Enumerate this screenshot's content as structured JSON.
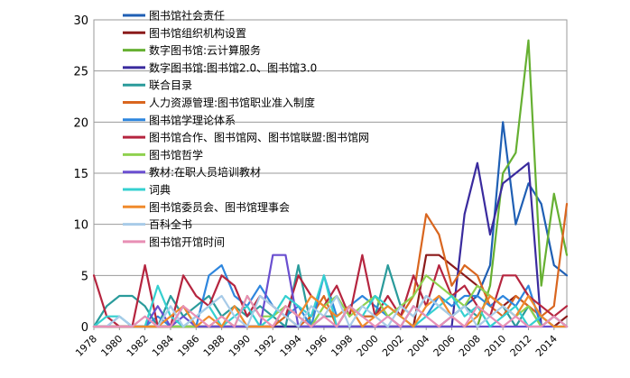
{
  "chart_data": {
    "type": "line",
    "title": "",
    "xlabel": "",
    "ylabel": "",
    "ylim": [
      0,
      30
    ],
    "yticks": [
      0,
      5,
      10,
      15,
      20,
      25,
      30
    ],
    "xlim": [
      1978,
      2015
    ],
    "xtick_labels": [
      "1978",
      "1980",
      "1982",
      "1984",
      "1986",
      "1988",
      "1990",
      "1992",
      "1994",
      "1996",
      "1998",
      "2000",
      "2002",
      "2004",
      "2006",
      "2008",
      "2010",
      "2012",
      "2014"
    ],
    "grid": "horizontal",
    "legend_position": "top-left",
    "x": [
      1978,
      1979,
      1980,
      1981,
      1982,
      1983,
      1984,
      1985,
      1986,
      1987,
      1988,
      1989,
      1990,
      1991,
      1992,
      1993,
      1994,
      1995,
      1996,
      1997,
      1998,
      1999,
      2000,
      2001,
      2002,
      2003,
      2004,
      2005,
      2006,
      2007,
      2008,
      2009,
      2010,
      2011,
      2012,
      2013,
      2014,
      2015
    ],
    "series": [
      {
        "name": "图书馆社会责任",
        "color": "#1f5fb4",
        "values": [
          0,
          0,
          0,
          0,
          0,
          0,
          0,
          0,
          0,
          0,
          0,
          0,
          0,
          0,
          0,
          0,
          0,
          0,
          0,
          0,
          0,
          0,
          0,
          0,
          0,
          0,
          0,
          0,
          1,
          2,
          3,
          6,
          20,
          10,
          14,
          12,
          6,
          5
        ]
      },
      {
        "name": "图书馆组织机构设置",
        "color": "#8b1a1a",
        "values": [
          0,
          0,
          0,
          0,
          0,
          0,
          0,
          0,
          0,
          0,
          0,
          0,
          0,
          0,
          0,
          0,
          0,
          0,
          0,
          0,
          0,
          0,
          0,
          0,
          0,
          0,
          7,
          7,
          6,
          5,
          4,
          3,
          2,
          3,
          2,
          1,
          0,
          1
        ]
      },
      {
        "name": "数字图书馆:云计算服务",
        "color": "#66b032",
        "values": [
          0,
          0,
          0,
          0,
          0,
          0,
          0,
          0,
          0,
          0,
          0,
          0,
          0,
          0,
          0,
          0,
          0,
          0,
          0,
          0,
          0,
          0,
          0,
          0,
          0,
          0,
          0,
          0,
          0,
          0,
          0,
          4,
          15,
          17,
          28,
          4,
          13,
          7
        ]
      },
      {
        "name": "数字图书馆:图书馆2.0、图书馆3.0",
        "color": "#3a2b9e",
        "values": [
          0,
          0,
          0,
          0,
          0,
          0,
          0,
          0,
          0,
          0,
          0,
          0,
          0,
          0,
          0,
          0,
          0,
          0,
          0,
          0,
          0,
          0,
          0,
          0,
          0,
          0,
          0,
          0,
          0,
          11,
          16,
          9,
          14,
          15,
          16,
          0,
          1,
          0
        ]
      },
      {
        "name": "联合目录",
        "color": "#2a9b9b",
        "values": [
          0,
          2,
          3,
          3,
          2,
          0,
          3,
          1,
          2,
          3,
          1,
          2,
          1,
          2,
          1,
          0,
          6,
          0,
          1,
          1,
          2,
          1,
          1,
          6,
          2,
          1,
          3,
          2,
          1,
          2,
          1,
          3,
          2,
          0,
          2,
          0,
          1,
          0
        ]
      },
      {
        "name": "人力资源管理:图书馆职业准入制度",
        "color": "#d9661f",
        "values": [
          0,
          0,
          0,
          0,
          0,
          0,
          0,
          0,
          0,
          0,
          0,
          0,
          0,
          0,
          0,
          1,
          0,
          1,
          3,
          0,
          2,
          1,
          1,
          2,
          1,
          3,
          11,
          9,
          4,
          6,
          5,
          2,
          1,
          3,
          2,
          1,
          2,
          12
        ]
      },
      {
        "name": "图书馆学理论体系",
        "color": "#2e86de",
        "values": [
          0,
          0,
          1,
          0,
          0,
          1,
          0,
          2,
          0,
          5,
          6,
          3,
          2,
          4,
          2,
          1,
          2,
          0,
          5,
          1,
          2,
          3,
          2,
          1,
          0,
          2,
          1,
          3,
          2,
          3,
          3,
          2,
          3,
          2,
          4,
          0,
          1,
          0
        ]
      },
      {
        "name": "图书馆合作、图书馆网、图书馆联盟:图书馆网",
        "color": "#b5253f",
        "values": [
          5,
          1,
          0,
          0,
          6,
          0,
          0,
          5,
          3,
          2,
          5,
          4,
          1,
          3,
          2,
          1,
          5,
          3,
          2,
          4,
          1,
          7,
          1,
          3,
          1,
          5,
          2,
          6,
          3,
          4,
          2,
          1,
          5,
          5,
          3,
          2,
          1,
          2
        ]
      },
      {
        "name": "图书馆哲学",
        "color": "#8fd14f",
        "values": [
          0,
          0,
          0,
          0,
          0,
          0,
          0,
          0,
          0,
          0,
          1,
          0,
          3,
          1,
          1,
          2,
          1,
          0,
          2,
          3,
          1,
          2,
          3,
          1,
          2,
          3,
          5,
          4,
          3,
          2,
          4,
          3,
          2,
          1,
          2,
          0,
          1,
          0
        ]
      },
      {
        "name": "教材:在职人员培训教材",
        "color": "#6a4fd0",
        "values": [
          0,
          0,
          0,
          0,
          0,
          2,
          0,
          1,
          0,
          0,
          0,
          0,
          0,
          0,
          7,
          7,
          0,
          0,
          0,
          0,
          0,
          0,
          0,
          0,
          0,
          0,
          0,
          0,
          0,
          0,
          0,
          0,
          0,
          0,
          0,
          0,
          0,
          0
        ]
      },
      {
        "name": "词典",
        "color": "#35d0d0",
        "values": [
          0,
          1,
          1,
          0,
          0,
          4,
          1,
          0,
          1,
          2,
          0,
          1,
          2,
          0,
          1,
          3,
          2,
          1,
          5,
          0,
          2,
          1,
          3,
          2,
          1,
          0,
          1,
          2,
          3,
          1,
          2,
          0,
          1,
          2,
          0,
          1,
          0,
          0
        ]
      },
      {
        "name": "图书馆委员会、图书馆理事会",
        "color": "#f08a2c",
        "values": [
          0,
          0,
          0,
          0,
          0,
          0,
          1,
          2,
          0,
          1,
          0,
          2,
          0,
          0,
          0,
          2,
          1,
          3,
          2,
          1,
          2,
          0,
          1,
          2,
          1,
          0,
          2,
          3,
          1,
          0,
          1,
          3,
          2,
          1,
          3,
          1,
          0,
          0
        ]
      },
      {
        "name": "百科全书",
        "color": "#a8cbe8",
        "values": [
          0,
          0,
          1,
          0,
          1,
          0,
          2,
          0,
          1,
          2,
          3,
          1,
          0,
          3,
          2,
          1,
          0,
          2,
          1,
          3,
          0,
          2,
          1,
          0,
          2,
          1,
          3,
          2,
          1,
          2,
          0,
          1,
          2,
          1,
          0,
          0,
          1,
          0
        ]
      },
      {
        "name": "图书馆开馆时间",
        "color": "#e88fb5",
        "values": [
          0,
          0,
          0,
          0,
          1,
          0,
          0,
          2,
          1,
          0,
          1,
          0,
          3,
          1,
          0,
          2,
          1,
          0,
          1,
          0,
          2,
          1,
          0,
          1,
          0,
          2,
          1,
          0,
          1,
          0,
          2,
          1,
          0,
          1,
          0,
          0,
          1,
          0
        ]
      }
    ]
  }
}
